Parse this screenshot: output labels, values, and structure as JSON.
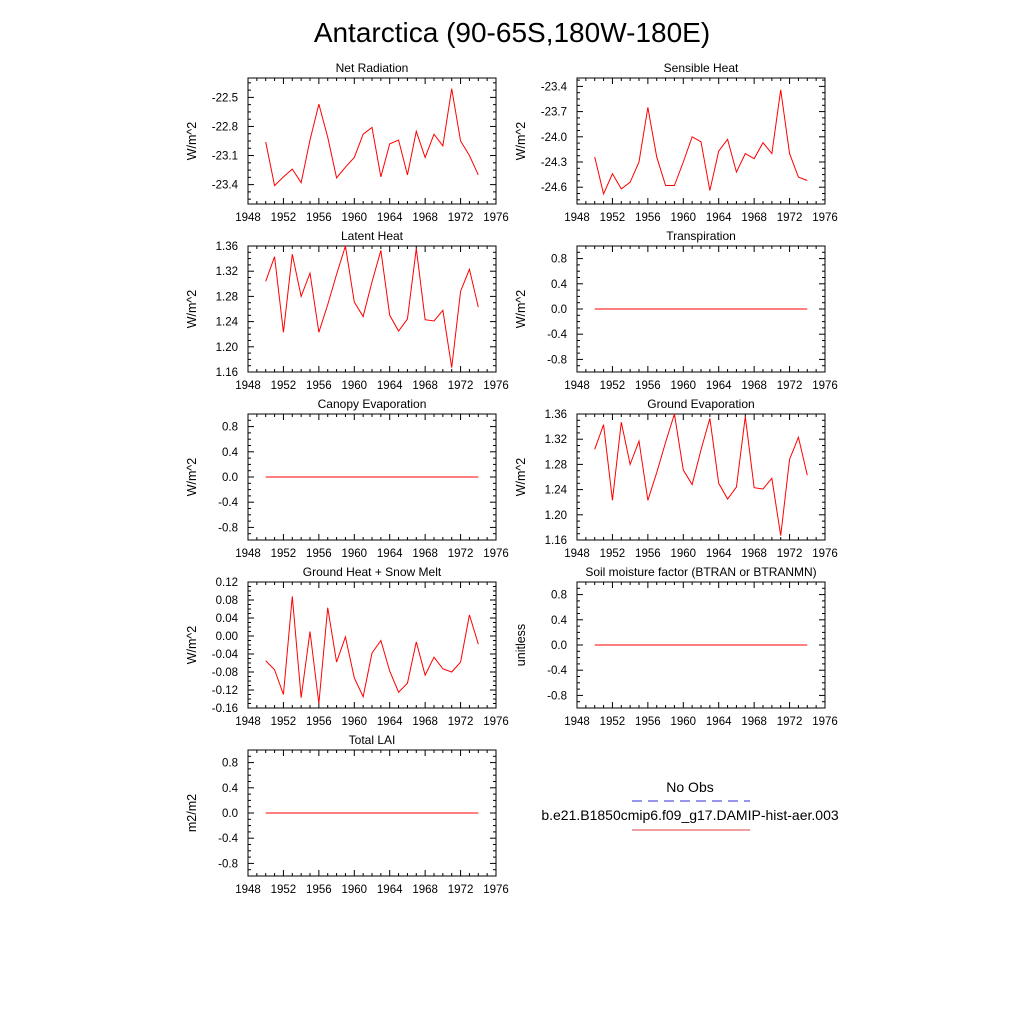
{
  "figure": {
    "title": "Antarctica (90-65S,180W-180E)"
  },
  "legend": {
    "entries": [
      {
        "label": "No Obs",
        "color": "#2b2bd9",
        "dashed": true
      },
      {
        "label": "b.e21.B1850cmip6.f09_g17.DAMIP-hist-aer.003",
        "color": "#e04040",
        "dashed": false
      }
    ]
  },
  "chart_data": [
    {
      "type": "line",
      "title": "Net Radiation",
      "ylabel": "W/m^2",
      "xlim": [
        1948,
        1976
      ],
      "ylim": [
        -23.6,
        -22.3
      ],
      "xticks": [
        1948,
        1952,
        1956,
        1960,
        1964,
        1968,
        1972,
        1976
      ],
      "yticks": [
        -22.5,
        -22.8,
        -23.1,
        -23.4
      ],
      "ytick_labels": [
        "-22.5",
        "-22.8",
        "-23.1",
        "-23.4"
      ],
      "color": "#ff0000",
      "x": [
        1950,
        1951,
        1952,
        1953,
        1954,
        1955,
        1956,
        1957,
        1958,
        1959,
        1960,
        1961,
        1962,
        1963,
        1964,
        1965,
        1966,
        1967,
        1968,
        1969,
        1970,
        1971,
        1972,
        1973,
        1974
      ],
      "y": [
        -22.96,
        -23.41,
        -23.32,
        -23.24,
        -23.38,
        -22.94,
        -22.57,
        -22.91,
        -23.33,
        -23.22,
        -23.12,
        -22.88,
        -22.81,
        -23.32,
        -22.98,
        -22.94,
        -23.3,
        -22.85,
        -23.12,
        -22.88,
        -23.0,
        -22.41,
        -22.95,
        -23.1,
        -23.3
      ]
    },
    {
      "type": "line",
      "title": "Sensible Heat",
      "ylabel": "W/m^2",
      "xlim": [
        1948,
        1976
      ],
      "ylim": [
        -24.8,
        -23.3
      ],
      "xticks": [
        1948,
        1952,
        1956,
        1960,
        1964,
        1968,
        1972,
        1976
      ],
      "yticks": [
        -23.4,
        -23.7,
        -24.0,
        -24.3,
        -24.6
      ],
      "ytick_labels": [
        "-23.4",
        "-23.7",
        "-24.0",
        "-24.3",
        "-24.6"
      ],
      "color": "#ff0000",
      "x": [
        1950,
        1951,
        1952,
        1953,
        1954,
        1955,
        1956,
        1957,
        1958,
        1959,
        1960,
        1961,
        1962,
        1963,
        1964,
        1965,
        1966,
        1967,
        1968,
        1969,
        1970,
        1971,
        1972,
        1973,
        1974
      ],
      "y": [
        -24.24,
        -24.68,
        -24.44,
        -24.62,
        -24.54,
        -24.3,
        -23.65,
        -24.24,
        -24.58,
        -24.58,
        -24.3,
        -24.0,
        -24.06,
        -24.64,
        -24.17,
        -24.03,
        -24.42,
        -24.2,
        -24.26,
        -24.07,
        -24.2,
        -23.44,
        -24.2,
        -24.48,
        -24.52
      ]
    },
    {
      "type": "line",
      "title": "Latent Heat",
      "ylabel": "W/m^2",
      "xlim": [
        1948,
        1976
      ],
      "ylim": [
        1.16,
        1.36
      ],
      "xticks": [
        1948,
        1952,
        1956,
        1960,
        1964,
        1968,
        1972,
        1976
      ],
      "yticks": [
        1.36,
        1.32,
        1.28,
        1.24,
        1.2,
        1.16
      ],
      "ytick_labels": [
        "1.36",
        "1.32",
        "1.28",
        "1.24",
        "1.20",
        "1.16"
      ],
      "color": "#ff0000",
      "x": [
        1950,
        1951,
        1952,
        1953,
        1954,
        1955,
        1956,
        1957,
        1958,
        1959,
        1960,
        1961,
        1962,
        1963,
        1964,
        1965,
        1966,
        1967,
        1968,
        1969,
        1970,
        1971,
        1972,
        1973,
        1974
      ],
      "y": [
        1.304,
        1.343,
        1.223,
        1.347,
        1.28,
        1.317,
        1.223,
        1.267,
        1.315,
        1.36,
        1.271,
        1.248,
        1.303,
        1.353,
        1.25,
        1.225,
        1.244,
        1.356,
        1.243,
        1.241,
        1.258,
        1.167,
        1.288,
        1.323,
        1.263
      ]
    },
    {
      "type": "line",
      "title": "Transpiration",
      "ylabel": "W/m^2",
      "xlim": [
        1948,
        1976
      ],
      "ylim": [
        -1.0,
        1.0
      ],
      "xticks": [
        1948,
        1952,
        1956,
        1960,
        1964,
        1968,
        1972,
        1976
      ],
      "yticks": [
        0.8,
        0.4,
        0.0,
        -0.4,
        -0.8
      ],
      "ytick_labels": [
        "0.8",
        "0.4",
        "0.0",
        "-0.4",
        "-0.8"
      ],
      "color": "#ff0000",
      "x": [
        1950,
        1974
      ],
      "y": [
        0.0,
        0.0
      ]
    },
    {
      "type": "line",
      "title": "Canopy Evaporation",
      "ylabel": "W/m^2",
      "xlim": [
        1948,
        1976
      ],
      "ylim": [
        -1.0,
        1.0
      ],
      "xticks": [
        1948,
        1952,
        1956,
        1960,
        1964,
        1968,
        1972,
        1976
      ],
      "yticks": [
        0.8,
        0.4,
        0.0,
        -0.4,
        -0.8
      ],
      "ytick_labels": [
        "0.8",
        "0.4",
        "0.0",
        "-0.4",
        "-0.8"
      ],
      "color": "#ff0000",
      "x": [
        1950,
        1974
      ],
      "y": [
        0.0,
        0.0
      ]
    },
    {
      "type": "line",
      "title": "Ground Evaporation",
      "ylabel": "W/m^2",
      "xlim": [
        1948,
        1976
      ],
      "ylim": [
        1.16,
        1.36
      ],
      "xticks": [
        1948,
        1952,
        1956,
        1960,
        1964,
        1968,
        1972,
        1976
      ],
      "yticks": [
        1.36,
        1.32,
        1.28,
        1.24,
        1.2,
        1.16
      ],
      "ytick_labels": [
        "1.36",
        "1.32",
        "1.28",
        "1.24",
        "1.20",
        "1.16"
      ],
      "color": "#ff0000",
      "x": [
        1950,
        1951,
        1952,
        1953,
        1954,
        1955,
        1956,
        1957,
        1958,
        1959,
        1960,
        1961,
        1962,
        1963,
        1964,
        1965,
        1966,
        1967,
        1968,
        1969,
        1970,
        1971,
        1972,
        1973,
        1974
      ],
      "y": [
        1.304,
        1.343,
        1.223,
        1.347,
        1.28,
        1.317,
        1.223,
        1.267,
        1.315,
        1.36,
        1.271,
        1.248,
        1.303,
        1.353,
        1.25,
        1.225,
        1.244,
        1.356,
        1.243,
        1.241,
        1.258,
        1.167,
        1.288,
        1.323,
        1.263
      ]
    },
    {
      "type": "line",
      "title": "Ground Heat + Snow Melt",
      "ylabel": "W/m^2",
      "xlim": [
        1948,
        1976
      ],
      "ylim": [
        -0.16,
        0.12
      ],
      "xticks": [
        1948,
        1952,
        1956,
        1960,
        1964,
        1968,
        1972,
        1976
      ],
      "yticks": [
        0.12,
        0.08,
        0.04,
        0.0,
        -0.04,
        -0.08,
        -0.12,
        -0.16
      ],
      "ytick_labels": [
        "0.12",
        "0.08",
        "0.04",
        "0.00",
        "-0.04",
        "-0.08",
        "-0.12",
        "-0.16"
      ],
      "color": "#ff0000",
      "x": [
        1950,
        1951,
        1952,
        1953,
        1954,
        1955,
        1956,
        1957,
        1958,
        1959,
        1960,
        1961,
        1962,
        1963,
        1964,
        1965,
        1966,
        1967,
        1968,
        1969,
        1970,
        1971,
        1972,
        1973,
        1974
      ],
      "y": [
        -0.055,
        -0.075,
        -0.13,
        0.088,
        -0.137,
        0.01,
        -0.15,
        0.063,
        -0.058,
        -0.002,
        -0.093,
        -0.135,
        -0.038,
        -0.01,
        -0.078,
        -0.125,
        -0.105,
        -0.013,
        -0.087,
        -0.047,
        -0.073,
        -0.08,
        -0.058,
        0.047,
        -0.018
      ]
    },
    {
      "type": "line",
      "title": "Soil moisture factor (BTRAN or BTRANMN)",
      "ylabel": "unitless",
      "xlim": [
        1948,
        1976
      ],
      "ylim": [
        -1.0,
        1.0
      ],
      "xticks": [
        1948,
        1952,
        1956,
        1960,
        1964,
        1968,
        1972,
        1976
      ],
      "yticks": [
        0.8,
        0.4,
        0.0,
        -0.4,
        -0.8
      ],
      "ytick_labels": [
        "0.8",
        "0.4",
        "0.0",
        "-0.4",
        "-0.8"
      ],
      "color": "#ff0000",
      "x": [
        1950,
        1974
      ],
      "y": [
        0.0,
        0.0
      ]
    },
    {
      "type": "line",
      "title": "Total LAI",
      "ylabel": "m2/m2",
      "xlim": [
        1948,
        1976
      ],
      "ylim": [
        -1.0,
        1.0
      ],
      "xticks": [
        1948,
        1952,
        1956,
        1960,
        1964,
        1968,
        1972,
        1976
      ],
      "yticks": [
        0.8,
        0.4,
        0.0,
        -0.4,
        -0.8
      ],
      "ytick_labels": [
        "0.8",
        "0.4",
        "0.0",
        "-0.4",
        "-0.8"
      ],
      "color": "#ff0000",
      "x": [
        1950,
        1974
      ],
      "y": [
        0.0,
        0.0
      ]
    }
  ]
}
